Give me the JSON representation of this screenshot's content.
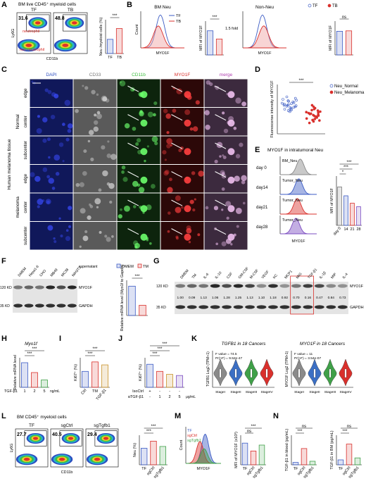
{
  "A": {
    "letter": "A",
    "title": "BM live CD45⁺ myeloid cells",
    "groups": [
      "TF",
      "TB"
    ],
    "gates": [
      31.6,
      48.8
    ],
    "gate_labels": [
      "neutrophil",
      "non-neutrophil"
    ],
    "xlabel": "CD11b",
    "ylabel": "Ly6G",
    "chart": {
      "type": "bar",
      "ylabel": "Neu /myeloid cells (%)",
      "categories": [
        "TF",
        "TB"
      ],
      "values": [
        21,
        37
      ],
      "colors": [
        "#3b5bc4",
        "#d9302c"
      ],
      "ylim": [
        0,
        50
      ],
      "sig": [
        "***"
      ]
    }
  },
  "B": {
    "letter": "B",
    "legend": [
      "TF",
      "TB"
    ],
    "colors": [
      "#3b5bc4",
      "#d9302c"
    ],
    "hist_titles": [
      "BM Neu",
      "Non-Neu"
    ],
    "xlabel": "MYO1F",
    "count": "Count",
    "charts": [
      {
        "type": "bar",
        "ylabel": "MFI of MYO1F",
        "values": [
          5.0,
          3.3
        ],
        "colors": [
          "#3b5bc4",
          "#d9302c"
        ],
        "ylim": [
          0,
          7
        ],
        "sig": [
          "***"
        ],
        "note": "1.5 fold"
      },
      {
        "type": "bar",
        "ylabel": "MFI of MYO1F",
        "values": [
          5.6,
          5.7
        ],
        "colors": [
          "#3b5bc4",
          "#d9302c"
        ],
        "ylim": [
          0,
          8
        ],
        "sig": [
          "ns"
        ]
      }
    ]
  },
  "C": {
    "letter": "C",
    "columns": [
      "DAPI",
      "CD33",
      "CD11b",
      "MYO1F",
      "merge"
    ],
    "rows": [
      "edge",
      "center",
      "subcenter",
      "edge",
      "center",
      "subcenter"
    ],
    "groups": [
      "Normal",
      "melanoma"
    ],
    "tissue": "Human melanoma tissue"
  },
  "D": {
    "letter": "D",
    "chart": {
      "type": "scatter",
      "ylabel": "Fluorescense intensity of MYO1F",
      "ylim": [
        0,
        100
      ],
      "sig": [
        "***"
      ],
      "series": [
        {
          "name": "Neu_Normal",
          "color": "#3b5bc4",
          "values": [
            62,
            55,
            70,
            48,
            58,
            66,
            52,
            60,
            75,
            45,
            57,
            63,
            50,
            68,
            54,
            59,
            72,
            47,
            61,
            56,
            65,
            53,
            49,
            67,
            58
          ]
        },
        {
          "name": "Neu_Melanoma",
          "color": "#d9302c",
          "values": [
            42,
            35,
            50,
            28,
            40,
            47,
            33,
            38,
            55,
            25,
            44,
            36,
            30,
            48,
            39,
            41,
            58,
            22,
            45,
            34,
            37,
            43,
            31,
            52,
            27
          ]
        }
      ]
    }
  },
  "E": {
    "letter": "E",
    "title": "MYO1F in intratumoral Neu",
    "days": [
      "day 0",
      "day14",
      "day21",
      "day28"
    ],
    "hist_labels": [
      "BM_Neu",
      "Tumor_Neu",
      "Tumor_Neu",
      "Tumor_Neu"
    ],
    "xlabel": "MYO1F",
    "chart": {
      "type": "bar",
      "ylabel": "MFI of MYO1F",
      "categories": [
        "day 0",
        "14",
        "21",
        "28"
      ],
      "values": [
        780,
        600,
        450,
        380
      ],
      "colors": [
        "#777777",
        "#3b5bc4",
        "#d9302c",
        "#7b4cc0"
      ],
      "ylim": [
        0,
        1000
      ],
      "sig": [
        "*",
        "***",
        "***"
      ]
    }
  },
  "F": {
    "letter": "F",
    "lanes": [
      "DMEM",
      "Hepa1-6",
      "CHO",
      "MB49",
      "MC38",
      "NIH3T3"
    ],
    "supernatant": "supernatant",
    "markers": [
      "120 KD",
      "35 KD"
    ],
    "proteins": [
      "MYO1F",
      "GAPDH"
    ],
    "chart": {
      "type": "bar",
      "ylabel": "Relative mRNA level (Myo1f to Gapdh)",
      "categories": [
        "DMEM",
        "TM"
      ],
      "values": [
        1.0,
        0.35
      ],
      "colors": [
        "#3b5bc4",
        "#d9302c"
      ],
      "ylim": [
        0,
        1.2
      ],
      "sig": [
        "***"
      ]
    }
  },
  "G": {
    "letter": "G",
    "lanes": [
      "DMEM",
      "TM",
      "IL-6",
      "IL-10",
      "CSF",
      "GM-CSF",
      "M-CSF",
      "VEGF",
      "KC",
      "MCP1",
      "MIG",
      "TGF-β1",
      "IL-1β",
      "MIP",
      "IL-4"
    ],
    "markers": [
      "120 KD",
      "35 KD"
    ],
    "proteins": [
      "MYO1F",
      "GAPDH"
    ],
    "quant": [
      "1.00",
      "0.09",
      "1.13",
      "1.06",
      "1.28",
      "1.25",
      "1.13",
      "1.10",
      "1.18",
      "0.92",
      "0.70",
      "0.16",
      "0.47",
      "0.84",
      "0.73"
    ]
  },
  "H": {
    "letter": "H",
    "chart": {
      "type": "bar",
      "title": "Myo1f",
      "ylabel": "Relative mRNA level",
      "row_label": "TGF-β1",
      "categories": [
        "1",
        "2",
        "5"
      ],
      "unit": "ng/mL",
      "values": [
        1.0,
        0.6,
        0.3
      ],
      "colors": [
        "#3b5bc4",
        "#d9302c",
        "#3fa048"
      ],
      "ylim": [
        0,
        1.2
      ],
      "sig": [
        "***",
        "***"
      ]
    }
  },
  "I": {
    "letter": "I",
    "chart": {
      "type": "bar",
      "ylabel": "Ki67⁺ (%)",
      "categories": [
        "Ctrl",
        "TM",
        "TGF-β1"
      ],
      "values": [
        27,
        43,
        38
      ],
      "colors": [
        "#3b5bc4",
        "#d9302c",
        "#c8922a"
      ],
      "ylim": [
        0,
        50
      ],
      "sig": [
        "***",
        "***"
      ]
    }
  },
  "J": {
    "letter": "J",
    "chart": {
      "type": "bar",
      "ylabel": "Ki67⁺ (%)",
      "rows": [
        {
          "label": "IsoCtrl",
          "cells": [
            "+",
            "-",
            "-",
            "-"
          ]
        },
        {
          "label": "αTGF-β1",
          "cells": [
            "-",
            "1",
            "2",
            "5"
          ]
        }
      ],
      "unit": "μg/mL",
      "values": [
        39,
        27,
        22,
        20
      ],
      "colors": [
        "#3b5bc4",
        "#d9302c",
        "#c8922a",
        "#7b4cc0"
      ],
      "ylim": [
        0,
        50
      ],
      "sig": [
        "***",
        "***",
        "***"
      ]
    }
  },
  "K": {
    "letter": "K",
    "stages": [
      "StageI",
      "StageII",
      "StageIII",
      "StageIV"
    ],
    "colors": [
      "#8a8a8a",
      "#3b6fc4",
      "#3fa048",
      "#d9302c"
    ],
    "plots": [
      {
        "title": "TGFB1 in 18 Cancers",
        "ylabel": "TGFB1 Log2 (TPM+1)",
        "stats": [
          "F value = 74.5",
          "Pr(>F) = 9.52e-47"
        ]
      },
      {
        "title": "MYO1F in 18 Cancers",
        "ylabel": "MYO1F Log2 (TPM+1)",
        "stats": [
          "F value = 11",
          "Pr(>F) = 3.54e-07"
        ]
      }
    ]
  },
  "L": {
    "letter": "L",
    "title": "BM CD45⁺ myeloid cells",
    "groups": [
      "TF",
      "sgCtrl",
      "sgTgfb1"
    ],
    "gates": [
      27.7,
      40.5,
      29.4
    ],
    "xlabel": "CD11b",
    "ylabel": "Ly6G",
    "chart": {
      "type": "bar",
      "ylabel": "Neu (%)",
      "categories": [
        "TF",
        "sgCtrl",
        "sgTgfb1"
      ],
      "values": [
        28,
        40,
        31
      ],
      "colors": [
        "#3b5bc4",
        "#d9302c",
        "#3fa048"
      ],
      "ylim": [
        0,
        50
      ],
      "sig": [
        "***",
        "***"
      ]
    }
  },
  "M": {
    "letter": "M",
    "count": "Count",
    "legend": [
      "TF",
      "sgCtrl",
      "sgTgfb1"
    ],
    "xlabel": "MYO1F",
    "chart": {
      "type": "bar",
      "ylabel": "MFI of MYO1F (x10³)",
      "categories": [
        "TF",
        "sgCtrl",
        "sgTgfb1"
      ],
      "values": [
        2.2,
        1.4,
        2.0
      ],
      "colors": [
        "#3b5bc4",
        "#d9302c",
        "#3fa048"
      ],
      "ylim": [
        0,
        3
      ],
      "sig": [
        "ns",
        "***"
      ]
    }
  },
  "N": {
    "letter": "N",
    "charts": [
      {
        "type": "bar",
        "ylabel": "TGF-β1 in blood (pg/mL)",
        "categories": [
          "TF",
          "sgCtrl",
          "sgTgfb1"
        ],
        "values": [
          80,
          550,
          120
        ],
        "colors": [
          "#3b5bc4",
          "#d9302c",
          "#3fa048"
        ],
        "ylim": [
          0,
          1000
        ],
        "sig": [
          "***",
          "ns"
        ]
      },
      {
        "type": "bar",
        "ylabel": "TGF-β1 in BM (pg/mL)",
        "categories": [
          "TF",
          "sgCtrl",
          "sgTgfb1"
        ],
        "values": [
          250,
          1050,
          350
        ],
        "colors": [
          "#3b5bc4",
          "#d9302c",
          "#3fa048"
        ],
        "ylim": [
          0,
          1500
        ],
        "sig": [
          "***",
          "ns"
        ]
      }
    ]
  }
}
